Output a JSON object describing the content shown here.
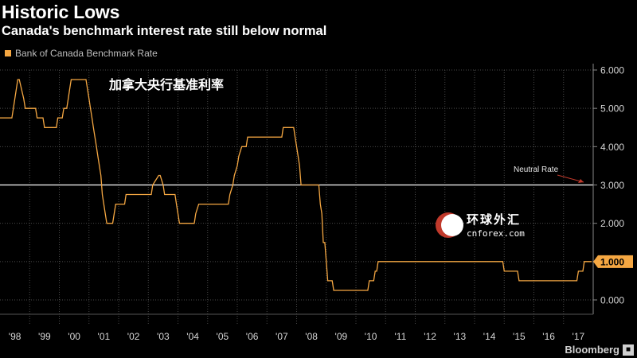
{
  "header": {
    "title": "Historic Lows",
    "subtitle": "Canada's benchmark interest rate still below normal"
  },
  "legend": {
    "label": "Bank of Canada Benchmark Rate"
  },
  "annotations": {
    "chinese_title": "加拿大央行基准利率",
    "neutral_label": "Neutral Rate",
    "watermark_cn": "环球外汇",
    "watermark_en": "cnforex.com"
  },
  "footer": {
    "brand": "Bloomberg"
  },
  "colors": {
    "series": "#f5a742",
    "neutral_line": "#ffffff",
    "neutral_arrow": "#c0392b",
    "grid": "#4a4a4a",
    "background": "#000000"
  },
  "chart_data": {
    "type": "line",
    "title": "Historic Lows",
    "subtitle": "Canada's benchmark interest rate still below normal",
    "xlabel": "",
    "ylabel": "",
    "xlim": [
      1998.0,
      2018.0
    ],
    "ylim": [
      0.0,
      6.0
    ],
    "yticks": [
      0.0,
      1.0,
      2.0,
      3.0,
      4.0,
      5.0,
      6.0
    ],
    "ytick_labels": [
      "0.000",
      "1.000",
      "2.000",
      "3.000",
      "4.000",
      "5.000",
      "6.000"
    ],
    "xtick_labels": [
      "'98",
      "'99",
      "'00",
      "'01",
      "'02",
      "'03",
      "'04",
      "'05",
      "'06",
      "'07",
      "'08",
      "'09",
      "'10",
      "'11",
      "'12",
      "'13",
      "'14",
      "'15",
      "'16",
      "'17"
    ],
    "grid": true,
    "legend_position": "top-left",
    "reference_line": {
      "label": "Neutral Rate",
      "value": 3.0
    },
    "last_value_label": "1.000",
    "series": [
      {
        "name": "Bank of Canada Benchmark Rate",
        "x": [
          1998.0,
          1998.4,
          1998.45,
          1998.6,
          1998.65,
          1998.8,
          1998.85,
          1999.2,
          1999.25,
          1999.45,
          1999.5,
          1999.9,
          1999.95,
          2000.1,
          2000.15,
          2000.25,
          2000.3,
          2000.35,
          2000.4,
          2000.9,
          2000.95,
          2001.0,
          2001.05,
          2001.1,
          2001.15,
          2001.2,
          2001.25,
          2001.3,
          2001.35,
          2001.4,
          2001.45,
          2001.55,
          2001.6,
          2001.65,
          2001.7,
          2001.75,
          2001.8,
          2001.85,
          2001.9,
          2001.95,
          2002.0,
          2002.2,
          2002.25,
          2002.35,
          2002.4,
          2002.45,
          2002.5,
          2002.55,
          2002.6,
          2003.1,
          2003.15,
          2003.35,
          2003.4,
          2003.5,
          2003.55,
          2003.9,
          2003.95,
          2004.0,
          2004.05,
          2004.15,
          2004.2,
          2004.55,
          2004.6,
          2004.7,
          2004.75,
          2004.8,
          2004.85,
          2005.7,
          2005.75,
          2005.85,
          2005.9,
          2006.0,
          2006.05,
          2006.15,
          2006.2,
          2006.3,
          2006.35,
          2006.45,
          2006.5,
          2007.5,
          2007.55,
          2007.9,
          2007.95,
          2008.0,
          2008.05,
          2008.1,
          2008.15,
          2008.3,
          2008.35,
          2008.75,
          2008.8,
          2008.85,
          2008.9,
          2008.95,
          2009.0,
          2009.05,
          2009.1,
          2009.2,
          2009.25,
          2009.3,
          2009.35,
          2010.4,
          2010.45,
          2010.6,
          2010.65,
          2010.7,
          2010.75,
          2010.8,
          2014.95,
          2015.0,
          2015.45,
          2015.5,
          2017.45,
          2017.5,
          2017.65,
          2017.7,
          2017.95
        ],
        "values": [
          4.75,
          4.75,
          5.0,
          5.75,
          5.75,
          5.25,
          5.0,
          5.0,
          4.75,
          4.75,
          4.5,
          4.5,
          4.75,
          4.75,
          5.0,
          5.0,
          5.25,
          5.5,
          5.75,
          5.75,
          5.5,
          5.25,
          5.0,
          4.75,
          4.5,
          4.25,
          4.0,
          3.75,
          3.5,
          3.25,
          2.75,
          2.25,
          2.0,
          2.0,
          2.0,
          2.0,
          2.0,
          2.25,
          2.5,
          2.5,
          2.5,
          2.5,
          2.75,
          2.75,
          2.75,
          2.75,
          2.75,
          2.75,
          2.75,
          2.75,
          3.0,
          3.25,
          3.25,
          3.0,
          2.75,
          2.75,
          2.5,
          2.25,
          2.0,
          2.0,
          2.0,
          2.0,
          2.25,
          2.5,
          2.5,
          2.5,
          2.5,
          2.5,
          2.75,
          3.0,
          3.25,
          3.5,
          3.75,
          4.0,
          4.0,
          4.0,
          4.25,
          4.25,
          4.25,
          4.25,
          4.5,
          4.5,
          4.25,
          4.0,
          3.75,
          3.5,
          3.0,
          3.0,
          3.0,
          3.0,
          2.5,
          2.25,
          1.5,
          1.5,
          1.0,
          0.5,
          0.5,
          0.5,
          0.25,
          0.25,
          0.25,
          0.25,
          0.5,
          0.5,
          0.75,
          0.75,
          1.0,
          1.0,
          1.0,
          0.75,
          0.75,
          0.5,
          0.5,
          0.75,
          0.75,
          1.0,
          1.0
        ]
      }
    ]
  }
}
